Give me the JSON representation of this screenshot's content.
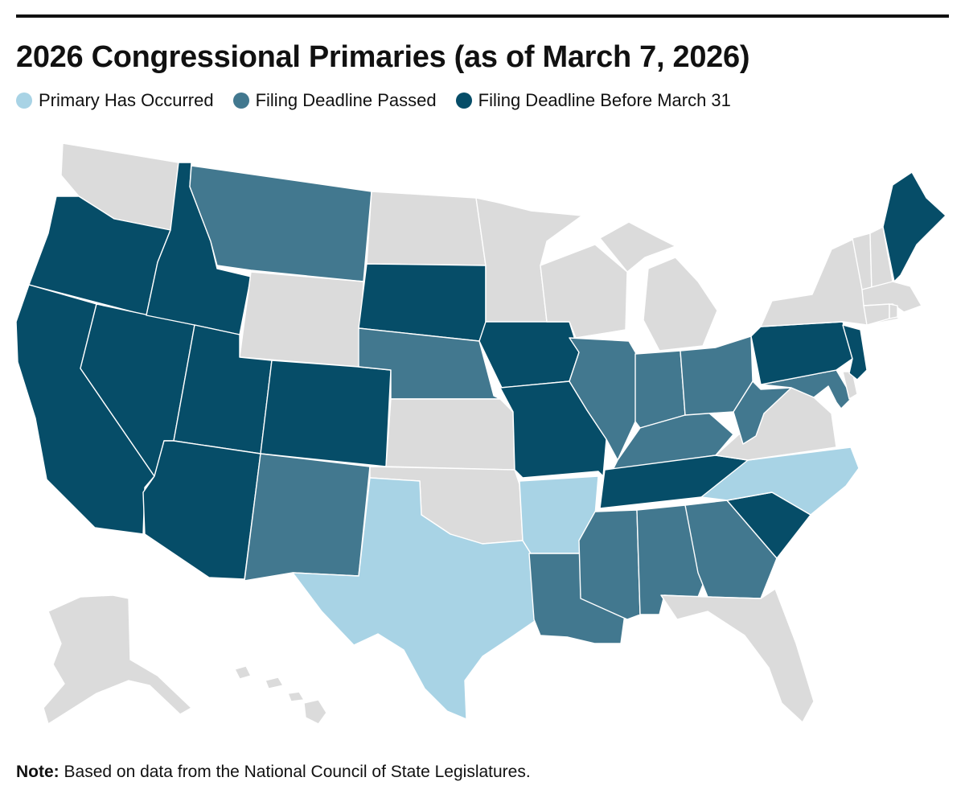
{
  "title": "2026 Congressional Primaries (as of March 7, 2026)",
  "legend": [
    {
      "label": "Primary Has Occurred",
      "color": "#a8d3e5"
    },
    {
      "label": "Filing Deadline Passed",
      "color": "#42788f"
    },
    {
      "label": "Filing Deadline Before March 31",
      "color": "#064d68"
    }
  ],
  "no_data_color": "#dbdbdb",
  "note": {
    "label": "Note:",
    "text": " Based on data from the National Council of State Legislatures."
  },
  "states": {
    "WA": "none",
    "OR": "before_mar31",
    "CA": "before_mar31",
    "NV": "before_mar31",
    "ID": "before_mar31",
    "MT": "passed",
    "WY": "none",
    "UT": "before_mar31",
    "AZ": "before_mar31",
    "CO": "before_mar31",
    "NM": "passed",
    "ND": "none",
    "SD": "before_mar31",
    "NE": "passed",
    "KS": "none",
    "OK": "none",
    "TX": "occurred",
    "MN": "none",
    "IA": "before_mar31",
    "MO": "before_mar31",
    "AR": "occurred",
    "LA": "passed",
    "WI": "none",
    "IL": "passed",
    "MS": "passed",
    "MI": "none",
    "IN": "passed",
    "KY": "passed",
    "TN": "before_mar31",
    "AL": "passed",
    "OH": "passed",
    "GA": "passed",
    "FL": "none",
    "SC": "before_mar31",
    "NC": "occurred",
    "VA": "none",
    "WV": "passed",
    "MD": "passed",
    "DE": "none",
    "PA": "before_mar31",
    "NJ": "before_mar31",
    "NY": "none",
    "CT": "none",
    "RI": "none",
    "MA": "none",
    "VT": "none",
    "NH": "none",
    "ME": "before_mar31",
    "AK": "none",
    "HI": "none"
  }
}
